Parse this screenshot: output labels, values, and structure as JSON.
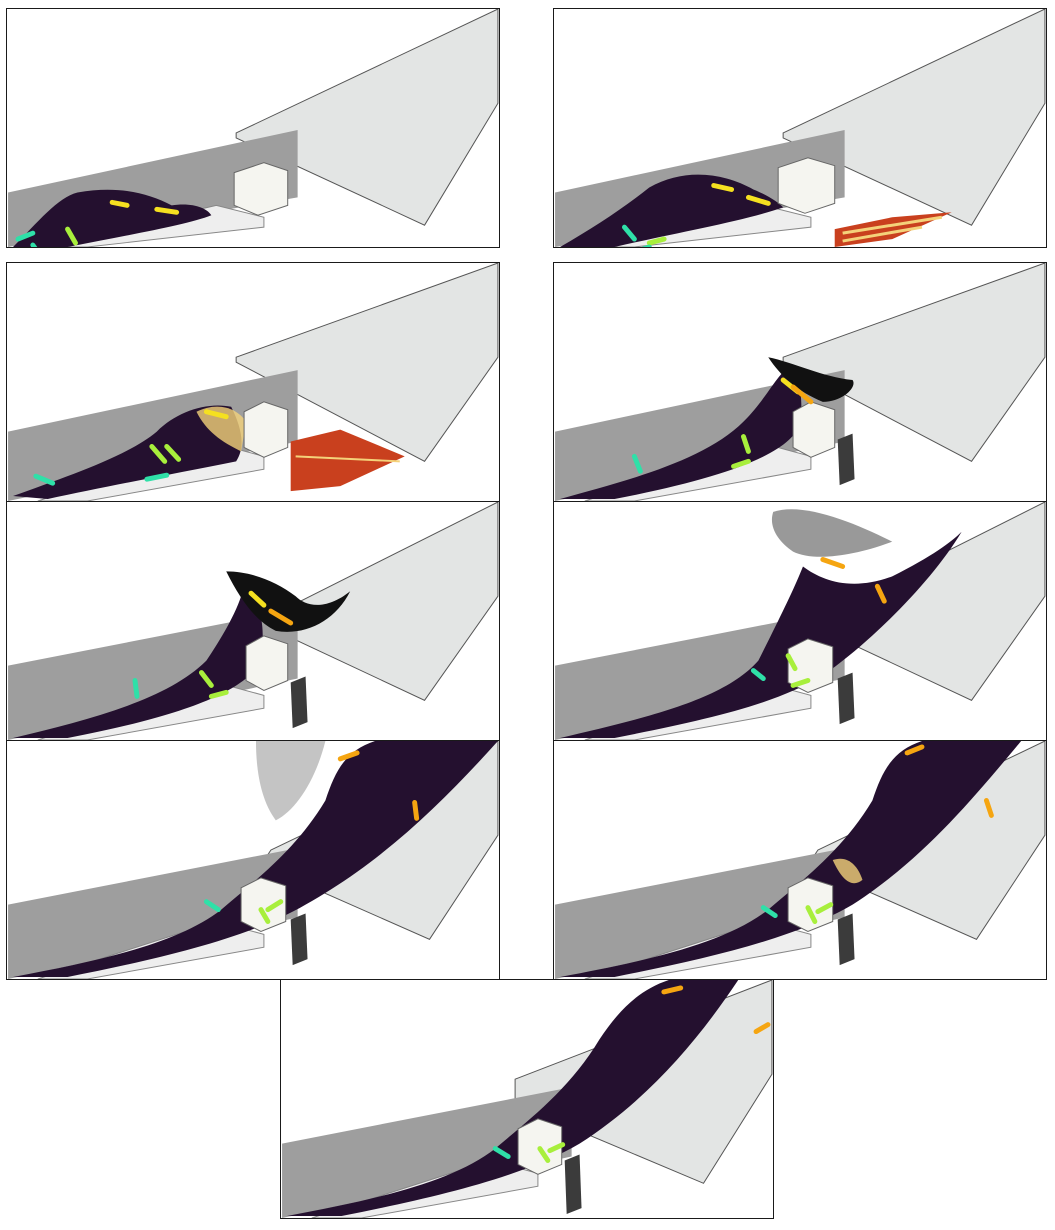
{
  "figure": {
    "panel_count": 9,
    "panels": [
      {
        "id": 1,
        "stage": "wave-rising",
        "splash": false,
        "spray": false,
        "impact_heat": false
      },
      {
        "id": 2,
        "stage": "wave-approaching-block",
        "splash": false,
        "spray": false,
        "impact_heat": true
      },
      {
        "id": 3,
        "stage": "impact-on-block",
        "splash": false,
        "spray": false,
        "impact_heat": true
      },
      {
        "id": 4,
        "stage": "overtopping-begins",
        "splash": true,
        "spray": false,
        "impact_heat": false
      },
      {
        "id": 5,
        "stage": "overtopping-jet",
        "splash": true,
        "spray": true,
        "impact_heat": false
      },
      {
        "id": 6,
        "stage": "jet-hits-deck",
        "splash": true,
        "spray": true,
        "impact_heat": false
      },
      {
        "id": 7,
        "stage": "flow-over-deck",
        "splash": true,
        "spray": true,
        "impact_heat": false
      },
      {
        "id": 8,
        "stage": "flow-over-deck-late",
        "splash": true,
        "spray": true,
        "impact_heat": true
      },
      {
        "id": 9,
        "stage": "steady-runoff",
        "splash": true,
        "spray": true,
        "impact_heat": false
      }
    ],
    "colors": {
      "wall": "#9e9e9e",
      "deck": "#e3e5e4",
      "fluid": "#2a0f3e",
      "particles": "#111111",
      "heat_high": "#f4d27a",
      "heat_mid": "#c9401e",
      "bar_cyan": "#2fe0a8",
      "bar_lime": "#a8ef3c",
      "bar_yellow": "#f5e020",
      "bar_orange": "#f5a511"
    }
  }
}
